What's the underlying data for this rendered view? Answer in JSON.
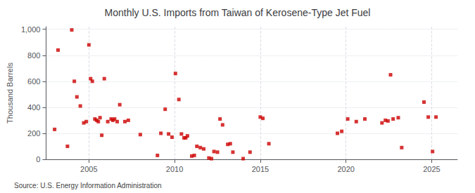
{
  "chart_data": {
    "type": "scatter",
    "title": "Monthly U.S. Imports from Taiwan of Kerosene-Type Jet Fuel",
    "ylabel": "Thousand Barrels",
    "annotations": [
      "Source: U.S. Energy Information Administration"
    ],
    "color": "#cc0000",
    "marker": "square",
    "grid": true,
    "xlim": [
      2002.5,
      2026.5
    ],
    "xticks": [
      2005,
      2010,
      2015,
      2020,
      2025
    ],
    "ylim": [
      0,
      1020
    ],
    "yticks": [
      0,
      200,
      400,
      600,
      800,
      {
        "value": 1000,
        "label": "1,000"
      }
    ],
    "x": [
      2003.0,
      2003.2,
      2003.75,
      2004.0,
      2004.15,
      2004.3,
      2004.5,
      2004.7,
      2004.85,
      2005.0,
      2005.1,
      2005.2,
      2005.35,
      2005.45,
      2005.55,
      2005.65,
      2005.75,
      2005.9,
      2006.1,
      2006.3,
      2006.4,
      2006.5,
      2006.65,
      2006.8,
      2007.1,
      2007.3,
      2008.0,
      2009.0,
      2009.2,
      2009.45,
      2009.65,
      2009.85,
      2010.05,
      2010.25,
      2010.4,
      2010.55,
      2010.65,
      2010.75,
      2011.0,
      2011.15,
      2011.3,
      2011.5,
      2011.7,
      2012.0,
      2012.15,
      2012.3,
      2012.5,
      2012.65,
      2012.8,
      2013.1,
      2013.25,
      2013.4,
      2014.0,
      2014.4,
      2015.0,
      2015.15,
      2015.5,
      2019.5,
      2019.75,
      2020.1,
      2020.6,
      2021.1,
      2022.1,
      2022.3,
      2022.45,
      2022.6,
      2022.75,
      2023.05,
      2023.25,
      2024.55,
      2024.8,
      2025.05,
      2025.25
    ],
    "values": [
      230,
      840,
      100,
      995,
      600,
      480,
      410,
      280,
      290,
      880,
      620,
      600,
      310,
      300,
      290,
      320,
      185,
      620,
      290,
      310,
      300,
      310,
      290,
      420,
      290,
      300,
      190,
      30,
      200,
      385,
      195,
      170,
      660,
      460,
      195,
      165,
      165,
      180,
      25,
      30,
      100,
      90,
      80,
      10,
      5,
      60,
      55,
      310,
      265,
      115,
      120,
      55,
      5,
      55,
      325,
      315,
      120,
      200,
      215,
      310,
      290,
      310,
      280,
      300,
      295,
      650,
      310,
      320,
      90,
      440,
      325,
      60,
      325
    ]
  }
}
